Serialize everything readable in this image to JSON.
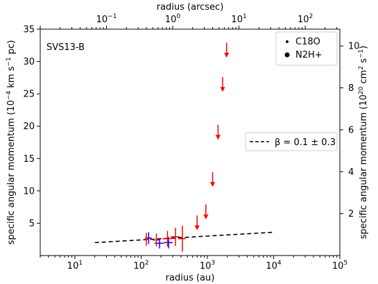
{
  "chart_data": {
    "type": "scatter",
    "panel_label": "SVS13-B",
    "xlabel_bottom": "radius (au)",
    "xlabel_top": "radius (arcsec)",
    "ylabel_left": "specific angular momentum (10^{−4} km s^{−1} pc)",
    "ylabel_right": "specific angular momentum (10^{20} cm^{2} s^{−1})",
    "xscale": "log",
    "xlim": [
      3,
      100000
    ],
    "ylim": [
      0,
      35
    ],
    "top_xlim": [
      0.01,
      333
    ],
    "right_ylim": [
      0,
      10.8
    ],
    "x_ticks": [
      {
        "value": 10,
        "base": "10",
        "exp": "1"
      },
      {
        "value": 100,
        "base": "10",
        "exp": "2"
      },
      {
        "value": 1000,
        "base": "10",
        "exp": "3"
      },
      {
        "value": 10000,
        "base": "10",
        "exp": "4"
      },
      {
        "value": 100000,
        "base": "10",
        "exp": "5"
      }
    ],
    "top_ticks": [
      {
        "value": 0.1,
        "base": "10",
        "exp": "−1"
      },
      {
        "value": 1,
        "base": "10",
        "exp": "0"
      },
      {
        "value": 10,
        "base": "10",
        "exp": "1"
      },
      {
        "value": 100,
        "base": "10",
        "exp": "2"
      }
    ],
    "y_ticks": [
      5,
      10,
      15,
      20,
      25,
      30,
      35
    ],
    "right_ticks": [
      2,
      4,
      6,
      8,
      10
    ],
    "legend_markers": [
      {
        "label": "C18O",
        "marker": "small-dot"
      },
      {
        "label": "N2H+",
        "marker": "large-dot"
      }
    ],
    "legend_fit": {
      "label": "β = 0.1 ± 0.3",
      "style": "dashed"
    },
    "fit_line": {
      "x": [
        20,
        10000
      ],
      "y": [
        2.0,
        3.6
      ],
      "color": "#000000"
    },
    "series": [
      {
        "color": "#0000ff",
        "points": [
          {
            "x": 130,
            "y": 2.7,
            "xerr": [
              15,
              15
            ],
            "yerr": 0.9
          },
          {
            "x": 190,
            "y": 1.9,
            "xerr": [
              30,
              30
            ],
            "yerr": 0.8
          },
          {
            "x": 260,
            "y": 2.0,
            "xerr": [
              40,
              40
            ],
            "yerr": 0.9
          }
        ]
      },
      {
        "color": "#ff0000",
        "points": [
          {
            "x": 120,
            "y": 2.5,
            "xerr": [
              10,
              10
            ],
            "yerr": 1.0
          },
          {
            "x": 170,
            "y": 2.4,
            "xerr": [
              20,
              20
            ],
            "yerr": 1.0
          },
          {
            "x": 250,
            "y": 2.6,
            "xerr": [
              40,
              40
            ],
            "yerr": 1.2
          },
          {
            "x": 330,
            "y": 2.9,
            "xerr": [
              50,
              50
            ],
            "yerr": 1.4
          },
          {
            "x": 420,
            "y": 2.6,
            "xerr": [
              50,
              50
            ],
            "yerr": 2.0
          }
        ]
      }
    ],
    "upper_limits": {
      "color": "#ff0000",
      "points": [
        {
          "x": 700,
          "y": 3.9,
          "len": 2.3
        },
        {
          "x": 950,
          "y": 5.6,
          "len": 2.3
        },
        {
          "x": 1200,
          "y": 10.6,
          "len": 2.3
        },
        {
          "x": 1450,
          "y": 17.9,
          "len": 2.3
        },
        {
          "x": 1700,
          "y": 25.3,
          "len": 2.3
        },
        {
          "x": 1950,
          "y": 30.6,
          "len": 2.3
        }
      ]
    }
  }
}
